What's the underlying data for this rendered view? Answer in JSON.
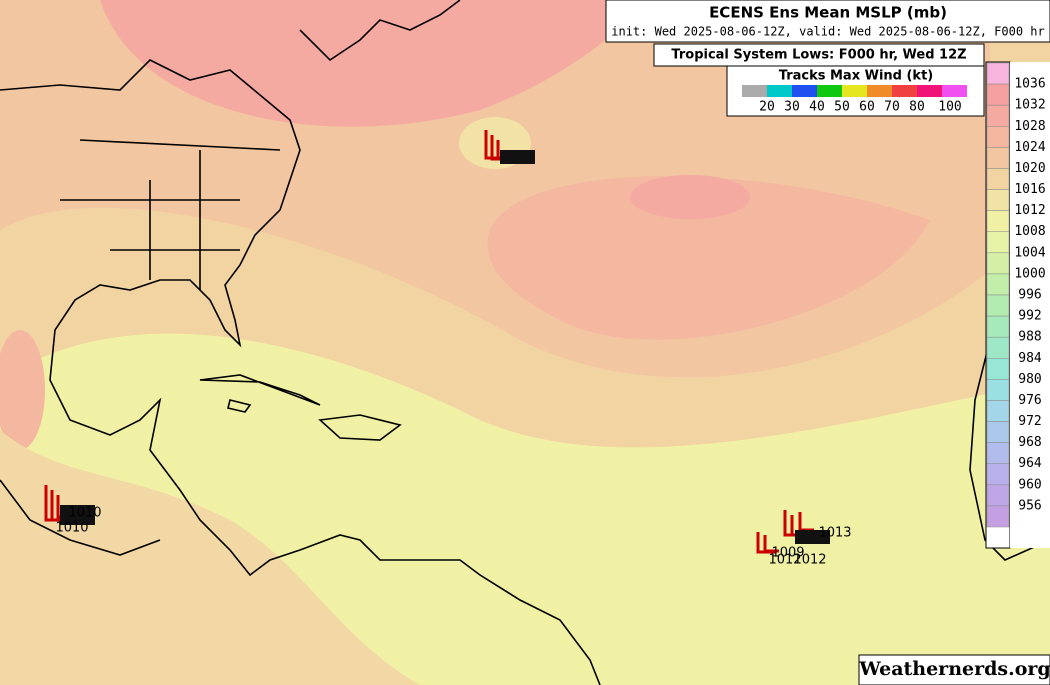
{
  "header": {
    "title": "ECENS Ens Mean MSLP (mb)",
    "subtitle": "init: Wed 2025-08-06-12Z, valid: Wed 2025-08-06-12Z, F000 hr"
  },
  "tropical_box": {
    "title": "Tropical System Lows: F000 hr, Wed 12Z"
  },
  "wind_legend": {
    "title": "Tracks Max Wind (kt)",
    "colors": [
      "#aaaaaa",
      "#00c8c8",
      "#2050f0",
      "#10c810",
      "#e6e620",
      "#f08c28",
      "#f04040",
      "#f01478",
      "#f050f0"
    ],
    "labels": [
      "20",
      "30",
      "40",
      "50",
      "60",
      "70",
      "80",
      "100"
    ]
  },
  "colorbar": {
    "levels": [
      "1036",
      "1032",
      "1028",
      "1024",
      "1020",
      "1016",
      "1012",
      "1008",
      "1004",
      "1000",
      "996",
      "992",
      "988",
      "984",
      "980",
      "976",
      "972",
      "968",
      "964",
      "960",
      "956"
    ],
    "colors": [
      "#f7b4dc",
      "#f4a0a0",
      "#f4aaa0",
      "#f4b7a0",
      "#f2c6a0",
      "#f2d3a2",
      "#f1e2a6",
      "#f1f1a6",
      "#e6f2a6",
      "#d4f0a6",
      "#c2eeaa",
      "#b2ecb0",
      "#a6eabc",
      "#9ee8c8",
      "#98e6d6",
      "#9ae0e2",
      "#a2d6e8",
      "#aac8ea",
      "#b2bcec",
      "#b8b0ea",
      "#bea6e6",
      "#c4a0e2"
    ]
  },
  "track_labels": [
    "1010",
    "1010",
    "1013",
    "1009",
    "1012",
    "1012"
  ],
  "watermark": "Weathernerds.org"
}
